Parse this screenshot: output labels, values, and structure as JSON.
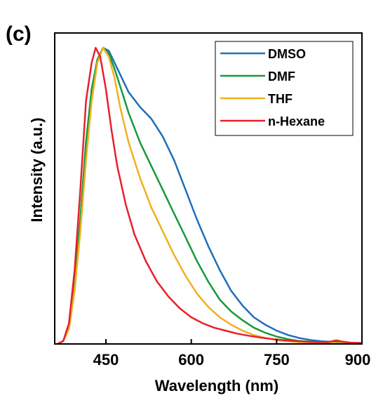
{
  "panel_label": "(c)",
  "chart_data": {
    "type": "line",
    "xlabel": "Wavelength (nm)",
    "ylabel": "Intensity (a.u.)",
    "xlim": [
      360,
      900
    ],
    "ylim": [
      0,
      1.05
    ],
    "x_ticks": [
      450,
      600,
      750,
      900
    ],
    "grid": false,
    "legend_position": "top-right",
    "series": [
      {
        "name": "DMSO",
        "color": "#1f6fba",
        "points": [
          [
            365,
            0.0
          ],
          [
            375,
            0.01
          ],
          [
            385,
            0.06
          ],
          [
            395,
            0.2
          ],
          [
            405,
            0.42
          ],
          [
            415,
            0.68
          ],
          [
            425,
            0.86
          ],
          [
            435,
            0.96
          ],
          [
            445,
            1.0
          ],
          [
            455,
            0.99
          ],
          [
            465,
            0.95
          ],
          [
            475,
            0.91
          ],
          [
            490,
            0.85
          ],
          [
            510,
            0.8
          ],
          [
            530,
            0.76
          ],
          [
            550,
            0.7
          ],
          [
            570,
            0.62
          ],
          [
            590,
            0.52
          ],
          [
            610,
            0.42
          ],
          [
            630,
            0.33
          ],
          [
            650,
            0.25
          ],
          [
            670,
            0.18
          ],
          [
            690,
            0.13
          ],
          [
            710,
            0.09
          ],
          [
            730,
            0.065
          ],
          [
            750,
            0.045
          ],
          [
            770,
            0.03
          ],
          [
            790,
            0.02
          ],
          [
            810,
            0.013
          ],
          [
            830,
            0.009
          ],
          [
            850,
            0.007
          ],
          [
            870,
            0.005
          ],
          [
            900,
            0.003
          ]
        ]
      },
      {
        "name": "DMF",
        "color": "#169b3a",
        "points": [
          [
            365,
            0.0
          ],
          [
            375,
            0.01
          ],
          [
            385,
            0.06
          ],
          [
            395,
            0.2
          ],
          [
            405,
            0.42
          ],
          [
            415,
            0.68
          ],
          [
            425,
            0.86
          ],
          [
            435,
            0.96
          ],
          [
            445,
            1.0
          ],
          [
            455,
            0.98
          ],
          [
            465,
            0.93
          ],
          [
            475,
            0.87
          ],
          [
            490,
            0.78
          ],
          [
            510,
            0.68
          ],
          [
            530,
            0.6
          ],
          [
            550,
            0.52
          ],
          [
            570,
            0.44
          ],
          [
            590,
            0.36
          ],
          [
            610,
            0.28
          ],
          [
            630,
            0.21
          ],
          [
            650,
            0.15
          ],
          [
            670,
            0.11
          ],
          [
            690,
            0.08
          ],
          [
            710,
            0.055
          ],
          [
            730,
            0.038
          ],
          [
            750,
            0.025
          ],
          [
            770,
            0.016
          ],
          [
            790,
            0.01
          ],
          [
            810,
            0.007
          ],
          [
            830,
            0.005
          ],
          [
            850,
            0.004
          ],
          [
            870,
            0.003
          ],
          [
            900,
            0.002
          ]
        ]
      },
      {
        "name": "THF",
        "color": "#f0b020",
        "points": [
          [
            365,
            0.0
          ],
          [
            375,
            0.01
          ],
          [
            385,
            0.05
          ],
          [
            395,
            0.18
          ],
          [
            405,
            0.38
          ],
          [
            415,
            0.62
          ],
          [
            425,
            0.82
          ],
          [
            435,
            0.95
          ],
          [
            445,
            1.0
          ],
          [
            455,
            0.97
          ],
          [
            465,
            0.9
          ],
          [
            475,
            0.8
          ],
          [
            490,
            0.68
          ],
          [
            510,
            0.56
          ],
          [
            530,
            0.46
          ],
          [
            550,
            0.38
          ],
          [
            570,
            0.3
          ],
          [
            590,
            0.23
          ],
          [
            610,
            0.17
          ],
          [
            630,
            0.125
          ],
          [
            650,
            0.09
          ],
          [
            670,
            0.065
          ],
          [
            690,
            0.045
          ],
          [
            710,
            0.03
          ],
          [
            730,
            0.02
          ],
          [
            750,
            0.013
          ],
          [
            770,
            0.009
          ],
          [
            790,
            0.006
          ],
          [
            810,
            0.005
          ],
          [
            830,
            0.004
          ],
          [
            850,
            0.003
          ],
          [
            870,
            0.002
          ],
          [
            900,
            0.002
          ]
        ]
      },
      {
        "name": "n-Hexane",
        "color": "#e8202a",
        "points": [
          [
            365,
            0.0
          ],
          [
            375,
            0.01
          ],
          [
            385,
            0.07
          ],
          [
            395,
            0.25
          ],
          [
            405,
            0.52
          ],
          [
            415,
            0.82
          ],
          [
            425,
            0.95
          ],
          [
            432,
            1.0
          ],
          [
            440,
            0.97
          ],
          [
            450,
            0.86
          ],
          [
            460,
            0.72
          ],
          [
            470,
            0.6
          ],
          [
            485,
            0.47
          ],
          [
            500,
            0.37
          ],
          [
            520,
            0.28
          ],
          [
            540,
            0.21
          ],
          [
            560,
            0.16
          ],
          [
            580,
            0.12
          ],
          [
            600,
            0.09
          ],
          [
            620,
            0.07
          ],
          [
            640,
            0.055
          ],
          [
            660,
            0.045
          ],
          [
            680,
            0.035
          ],
          [
            700,
            0.028
          ],
          [
            720,
            0.022
          ],
          [
            740,
            0.017
          ],
          [
            760,
            0.013
          ],
          [
            780,
            0.01
          ],
          [
            800,
            0.008
          ],
          [
            820,
            0.006
          ],
          [
            840,
            0.006
          ],
          [
            855,
            0.012
          ],
          [
            865,
            0.008
          ],
          [
            880,
            0.004
          ],
          [
            900,
            0.003
          ]
        ]
      }
    ]
  }
}
